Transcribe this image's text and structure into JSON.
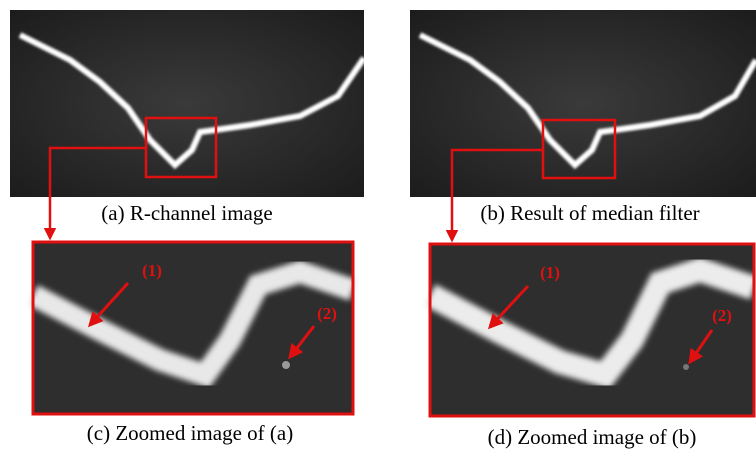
{
  "panels": [
    {
      "caption": "(a) R-channel image"
    },
    {
      "caption": "(b) Result of median filter"
    },
    {
      "caption": "(c) Zoomed image of (a)",
      "labels": [
        "(1)",
        "(2)"
      ]
    },
    {
      "caption": "(d) Zoomed image of (b)",
      "labels": [
        "(1)",
        "(2)"
      ]
    }
  ]
}
